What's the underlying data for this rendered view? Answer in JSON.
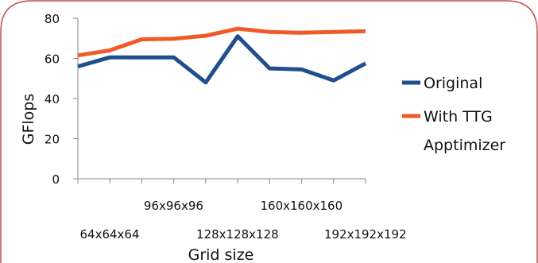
{
  "chart_data": {
    "type": "line",
    "title": "",
    "xlabel": "Grid size",
    "ylabel": "GFlops",
    "ylim": [
      0,
      80
    ],
    "yticks": [
      0,
      20,
      40,
      60,
      80
    ],
    "x_tick_labels": [
      {
        "index": 2,
        "row": 1,
        "text": "96x96x96"
      },
      {
        "index": 6,
        "row": 1,
        "text": "160x160x160"
      },
      {
        "index": 0,
        "row": 2,
        "text": "64x64x64"
      },
      {
        "index": 4,
        "row": 2,
        "text": "128x128x128"
      },
      {
        "index": 8,
        "row": 2,
        "text": "192x192x192"
      }
    ],
    "grid": false,
    "legend_position": "right",
    "series": [
      {
        "name": "Original",
        "color": "#1f4e8c",
        "values": [
          56,
          60.5,
          60.5,
          60.5,
          48,
          71,
          55,
          54.5,
          49,
          57.5
        ]
      },
      {
        "name": "With TTG Apptimizer",
        "color": "#f05a28",
        "values": [
          61.5,
          64,
          69.5,
          69.8,
          71.3,
          74.8,
          73.2,
          72.8,
          73.2,
          73.6
        ]
      }
    ],
    "legend_lines": [
      [
        "Original"
      ],
      [
        "With TTG",
        "Apptimizer"
      ]
    ],
    "frame_color": "#c0504d"
  }
}
